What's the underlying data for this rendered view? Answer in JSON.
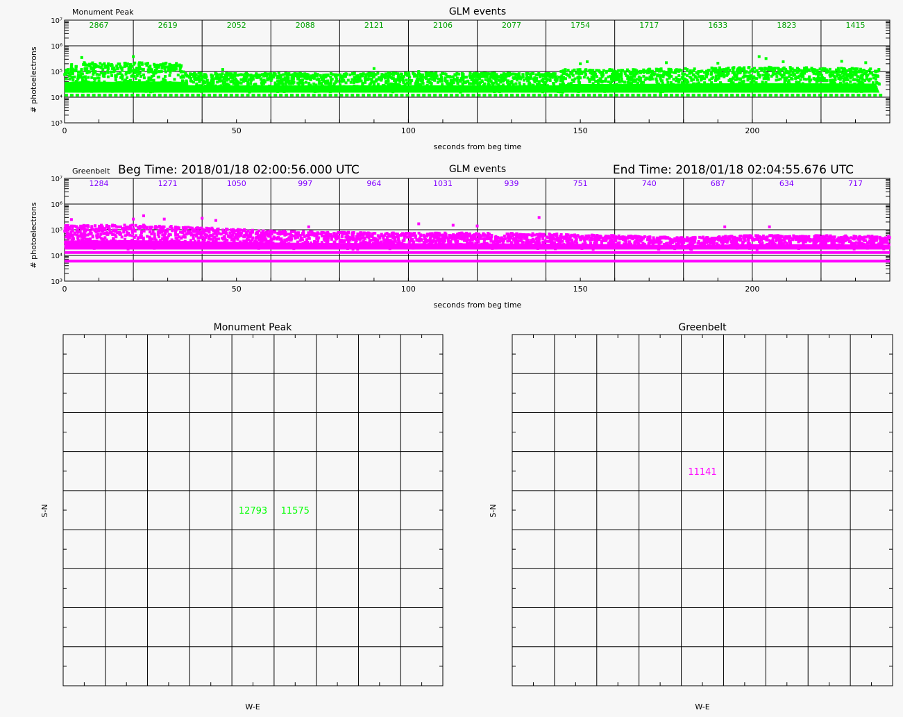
{
  "chart_data": [
    {
      "type": "scatter",
      "title": "GLM events",
      "station_label": "Monument Peak",
      "xlabel": "seconds from beg time",
      "ylabel": "# photoelectrons",
      "xlim": [
        0,
        240
      ],
      "ylim": [
        1000,
        10000000
      ],
      "y_scale": "log",
      "x_ticks": [
        0,
        50,
        100,
        150,
        200
      ],
      "x_tick_labels": [
        "0",
        "50",
        "100",
        "150",
        "200"
      ],
      "y_ticks": [
        1000,
        10000,
        100000,
        1000000,
        10000000
      ],
      "y_tick_labels": [
        "10³",
        "10⁴",
        "10⁵",
        "10⁶",
        "10⁷"
      ],
      "grid": true,
      "color": "#00ff00",
      "bin_edges_seconds": [
        0,
        20,
        40,
        60,
        80,
        100,
        120,
        140,
        160,
        180,
        200,
        220,
        240
      ],
      "bin_counts": [
        "2867",
        "2619",
        "2052",
        "2088",
        "2121",
        "2106",
        "2077",
        "1754",
        "1717",
        "1633",
        "1823",
        "1415"
      ],
      "count_color": "#00a000",
      "band": {
        "x": [
          0,
          2,
          5,
          10,
          15,
          20,
          25,
          30,
          34,
          35,
          40,
          60,
          80,
          100,
          120,
          140,
          144,
          145,
          160,
          180,
          200,
          220,
          237
        ],
        "y_upper": [
          180000,
          200000,
          230000,
          210000,
          200000,
          240000,
          210000,
          220000,
          200000,
          90000,
          85000,
          85000,
          85000,
          90000,
          85000,
          85000,
          90000,
          120000,
          120000,
          130000,
          150000,
          140000,
          130000
        ],
        "y_lower": [
          15000,
          15000,
          15000,
          15000,
          15000,
          15000,
          15000,
          15000,
          15000,
          15000,
          15000,
          15000,
          15000,
          15000,
          15000,
          15000,
          15000,
          15000,
          15000,
          15000,
          15000,
          15000,
          15000
        ]
      },
      "floor_dashes_y": 12000,
      "outliers": [
        {
          "x": 5,
          "y": 350000
        },
        {
          "x": 20,
          "y": 380000
        },
        {
          "x": 46,
          "y": 120000
        },
        {
          "x": 90,
          "y": 130000
        },
        {
          "x": 103,
          "y": 100000
        },
        {
          "x": 150,
          "y": 200000
        },
        {
          "x": 152,
          "y": 240000
        },
        {
          "x": 175,
          "y": 220000
        },
        {
          "x": 190,
          "y": 210000
        },
        {
          "x": 202,
          "y": 380000
        },
        {
          "x": 204,
          "y": 320000
        },
        {
          "x": 209,
          "y": 240000
        },
        {
          "x": 226,
          "y": 250000
        },
        {
          "x": 233,
          "y": 220000
        }
      ]
    },
    {
      "type": "scatter",
      "title": "GLM events",
      "station_label": "Greenbelt",
      "beg_time": "Beg Time: 2018/01/18 02:00:56.000 UTC",
      "end_time": "End Time: 2018/01/18 02:04:55.676 UTC",
      "xlabel": "seconds from beg time",
      "ylabel": "# photoelectrons",
      "xlim": [
        0,
        240
      ],
      "ylim": [
        1000,
        10000000
      ],
      "y_scale": "log",
      "x_ticks": [
        0,
        50,
        100,
        150,
        200
      ],
      "x_tick_labels": [
        "0",
        "50",
        "100",
        "150",
        "200"
      ],
      "y_ticks": [
        1000,
        10000,
        100000,
        1000000,
        10000000
      ],
      "y_tick_labels": [
        "10³",
        "10⁴",
        "10⁵",
        "10⁶",
        "10⁷"
      ],
      "grid": true,
      "color": "#ff00ff",
      "bin_edges_seconds": [
        0,
        20,
        40,
        60,
        80,
        100,
        120,
        140,
        160,
        180,
        200,
        220,
        240
      ],
      "bin_counts": [
        "1284",
        "1271",
        "1050",
        "997",
        "964",
        "1031",
        "939",
        "751",
        "740",
        "687",
        "634",
        "717"
      ],
      "count_color": "#8000ff",
      "band": {
        "x": [
          0,
          10,
          20,
          30,
          40,
          60,
          80,
          100,
          120,
          140,
          160,
          180,
          200,
          220,
          240
        ],
        "y_upper": [
          150000,
          150000,
          160000,
          140000,
          120000,
          90000,
          80000,
          75000,
          75000,
          70000,
          60000,
          50000,
          60000,
          60000,
          55000
        ],
        "y_lower": [
          17000,
          17000,
          17000,
          17000,
          17000,
          17000,
          17000,
          17000,
          17000,
          17000,
          17000,
          17000,
          17000,
          17000,
          17000
        ]
      },
      "floor_lines_y": [
        13000,
        6000
      ],
      "outliers": [
        {
          "x": 2,
          "y": 250000
        },
        {
          "x": 20,
          "y": 260000
        },
        {
          "x": 23,
          "y": 350000
        },
        {
          "x": 29,
          "y": 260000
        },
        {
          "x": 40,
          "y": 280000
        },
        {
          "x": 44,
          "y": 230000
        },
        {
          "x": 71,
          "y": 130000
        },
        {
          "x": 103,
          "y": 170000
        },
        {
          "x": 113,
          "y": 150000
        },
        {
          "x": 120,
          "y": 140000
        },
        {
          "x": 138,
          "y": 300000
        },
        {
          "x": 192,
          "y": 130000
        },
        {
          "x": 205,
          "y": 130000
        }
      ]
    },
    {
      "type": "table",
      "title": "Monument Peak",
      "xlabel": "W-E",
      "ylabel": "S-N",
      "columns": 9,
      "rows": 9,
      "color": "#00ff00",
      "cells": [
        {
          "col": 4,
          "row": 4,
          "value": "12793"
        },
        {
          "col": 5,
          "row": 4,
          "value": "11575"
        }
      ]
    },
    {
      "type": "table",
      "title": "Greenbelt",
      "xlabel": "W-E",
      "ylabel": "S-N",
      "columns": 9,
      "rows": 9,
      "color": "#ff00ff",
      "cells": [
        {
          "col": 4,
          "row": 3,
          "value": "11141"
        }
      ]
    }
  ]
}
